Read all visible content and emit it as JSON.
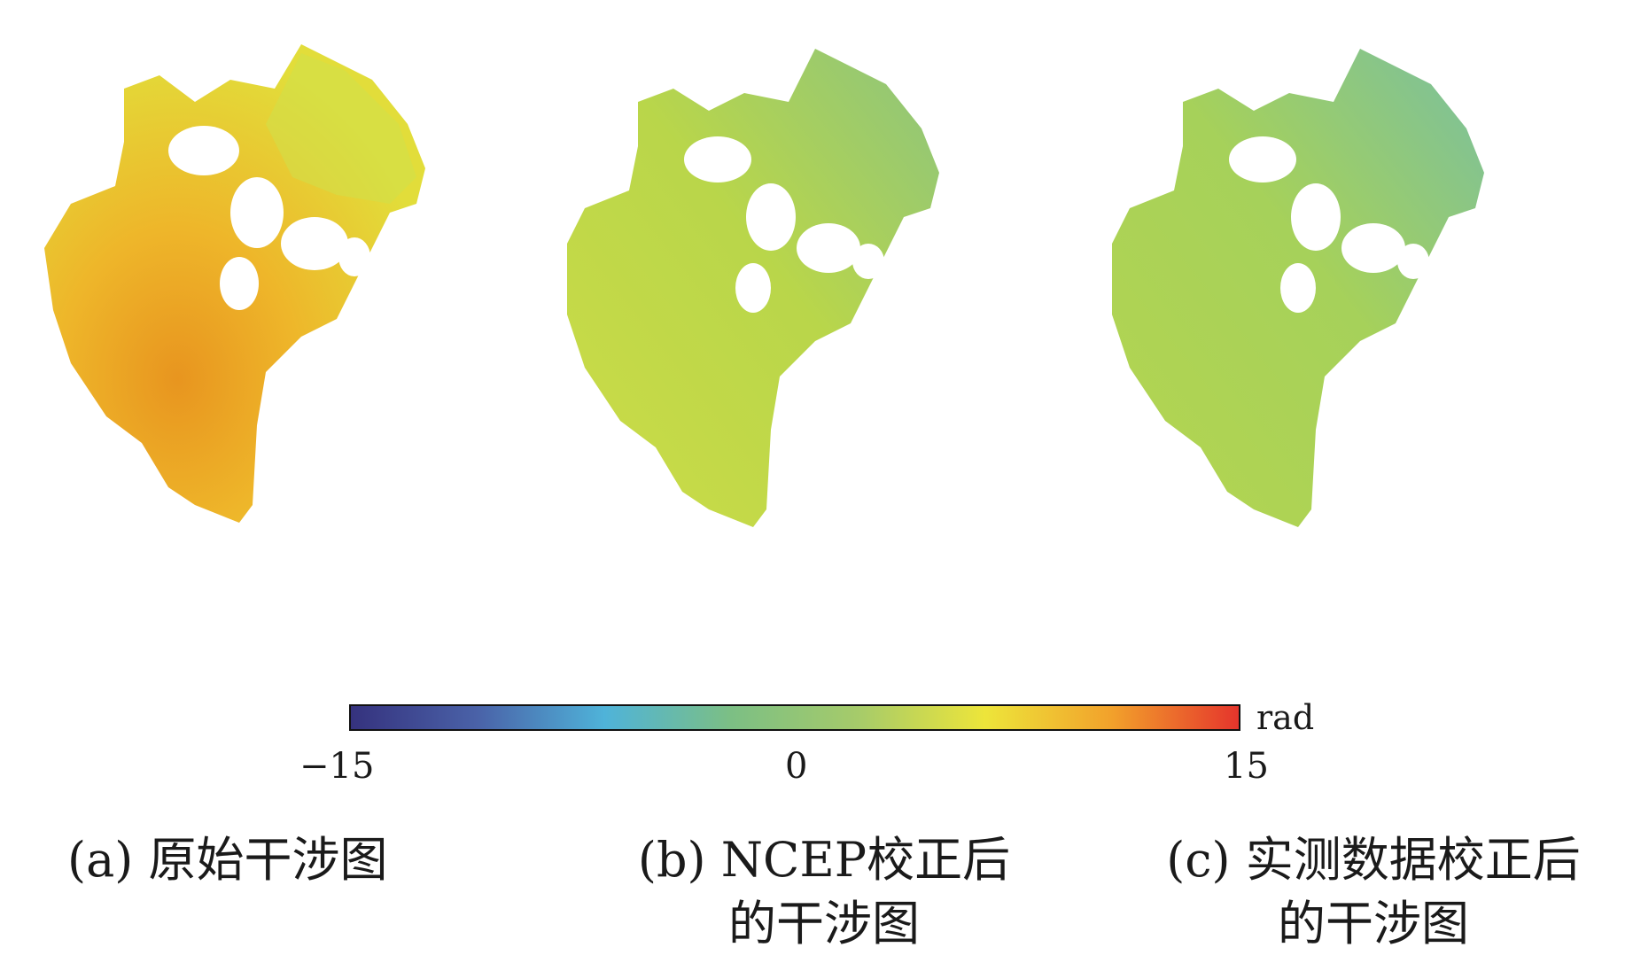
{
  "figure": {
    "panels": [
      {
        "id": "a",
        "caption_line1": "(a) 原始干涉图",
        "caption_line2": "",
        "dominant_color": "#eeb62a",
        "north_color": "#dede3a",
        "edge_color": "#e58a1e"
      },
      {
        "id": "b",
        "caption_line1": "(b) NCEP校正后",
        "caption_line2": "的干涉图",
        "dominant_color": "#b9d64a",
        "north_color": "#92c678",
        "edge_color": "#d0dc45"
      },
      {
        "id": "c",
        "caption_line1": "(c) 实测数据校正后",
        "caption_line2": "的干涉图",
        "dominant_color": "#a6d15a",
        "north_color": "#7cc09a",
        "edge_color": "#b5d54f"
      }
    ],
    "colorbar": {
      "unit": "rad",
      "min_label": "−15",
      "mid_label": "0",
      "max_label": "15",
      "range": [
        -15,
        15
      ],
      "stops": [
        "#35327e",
        "#4a62a8",
        "#4fb3d9",
        "#7cbf84",
        "#a6cb6a",
        "#ede53a",
        "#f2a12b",
        "#e5352c"
      ]
    }
  }
}
